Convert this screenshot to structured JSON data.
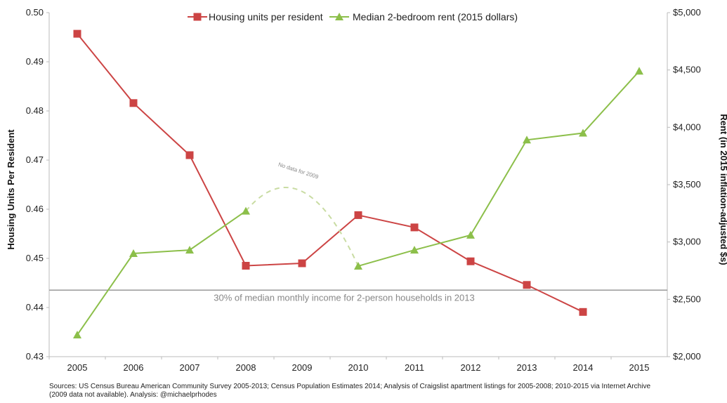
{
  "chart_data": {
    "type": "line",
    "categories": [
      "2005",
      "2006",
      "2007",
      "2008",
      "2009",
      "2010",
      "2011",
      "2012",
      "2013",
      "2014",
      "2015"
    ],
    "y_left": {
      "label": "Housing Units Per Resident",
      "min": 0.43,
      "max": 0.5,
      "ticks": [
        "0.43",
        "0.44",
        "0.45",
        "0.46",
        "0.47",
        "0.48",
        "0.49",
        "0.50"
      ]
    },
    "y_right": {
      "label": "Rent (in 2015 inflation-adjusted $s)",
      "min": 2000,
      "max": 5000,
      "ticks": [
        "$2,000",
        "$2,500",
        "$3,000",
        "$3,500",
        "$4,000",
        "$4,500",
        "$5,000"
      ]
    },
    "series": [
      {
        "name": "Housing units per resident",
        "axis": "left",
        "color": "#cc4444",
        "values": [
          0.4957,
          0.4816,
          0.471,
          0.4485,
          0.449,
          0.4588,
          0.4563,
          0.4494,
          0.4446,
          0.4391,
          null
        ]
      },
      {
        "name": "Median 2-bedroom rent (2015 dollars)",
        "axis": "right",
        "color": "#8cbf4a",
        "values": [
          2190,
          2900,
          2930,
          3270,
          null,
          2790,
          2930,
          3060,
          3890,
          3950,
          4490
        ]
      }
    ],
    "reference_line": {
      "axis": "right",
      "value": 2580,
      "label": "30% of median monthly income for 2-person households in 2013",
      "color": "#999999"
    },
    "gap_annotation": "No data for 2009",
    "legend_position": "top",
    "grid": false
  },
  "footer": {
    "source_line1": "Sources: US Census Bureau American Community Survey 2005-2013; Census Population Estimates 2014; Analysis of Craigslist apartment listings for 2005-2008; 2010-2015 via Internet Archive",
    "source_line2": "(2009 data not available). Analysis: @michaelprhodes"
  }
}
